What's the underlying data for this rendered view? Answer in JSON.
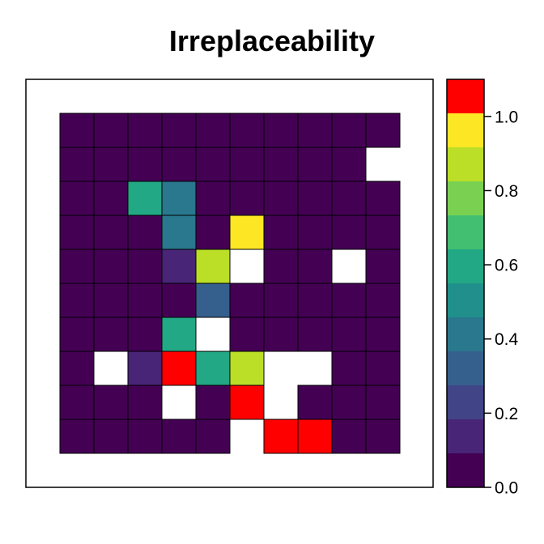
{
  "chart_data": {
    "type": "heatmap",
    "title": "Irreplaceability",
    "grid_rows": 10,
    "grid_cols": 10,
    "values": [
      [
        0,
        0,
        0,
        0,
        0,
        0,
        0,
        0,
        0,
        0
      ],
      [
        0,
        0,
        0,
        0,
        0,
        0,
        0,
        0,
        0,
        null
      ],
      [
        0,
        0,
        0.55,
        0.45,
        0,
        0,
        0,
        0,
        0,
        0
      ],
      [
        0,
        0,
        0,
        0.45,
        0,
        1.0,
        0,
        0,
        0,
        0
      ],
      [
        0,
        0,
        0,
        0.15,
        0.85,
        null,
        0,
        0,
        null,
        0
      ],
      [
        0,
        0,
        0,
        0,
        0.35,
        0,
        0,
        0,
        0,
        0
      ],
      [
        0,
        0,
        0,
        0.55,
        null,
        0,
        0,
        0,
        0,
        0
      ],
      [
        0,
        null,
        0.15,
        1.1,
        0.55,
        0.85,
        null,
        null,
        0,
        0
      ],
      [
        0,
        0,
        0,
        null,
        0,
        1.1,
        null,
        0,
        0,
        0
      ],
      [
        0,
        0,
        0,
        0,
        0,
        null,
        1.1,
        1.1,
        0,
        0
      ]
    ],
    "colorbar": {
      "min": 0,
      "max": 1.1,
      "ticks": [
        0.0,
        0.2,
        0.4,
        0.6,
        0.8,
        1.0
      ],
      "tick_labels": [
        "0.0",
        "0.2",
        "0.4",
        "0.6",
        "0.8",
        "1.0"
      ],
      "colors": [
        "#440154",
        "#482576",
        "#414487",
        "#35608D",
        "#2A788E",
        "#21908C",
        "#22A884",
        "#43BF71",
        "#7AD151",
        "#BBDF27",
        "#FDE725",
        "#FF0000"
      ]
    }
  }
}
